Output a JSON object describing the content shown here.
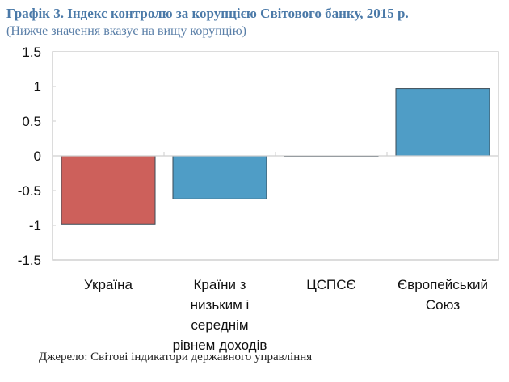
{
  "chart_data": {
    "type": "bar",
    "title": "Графік 3. Індекс контролю за корупцією Світового банку, 2015 р.",
    "subtitle": "(Нижче значення вказує на вищу корупцію)",
    "categories": [
      [
        "Україна"
      ],
      [
        "Країни з",
        "низьким і",
        "середнім",
        "рівнем доходів"
      ],
      [
        "ЦСПСЄ"
      ],
      [
        "Європейський",
        "Союз"
      ]
    ],
    "values": [
      -0.98,
      -0.62,
      0.0,
      0.97
    ],
    "bar_colors": [
      "#cd605b",
      "#4f9dc6",
      "#4f9dc6",
      "#4f9dc6"
    ],
    "ylim": [
      -1.5,
      1.5
    ],
    "yticks": [
      "1.5",
      "1",
      "0.5",
      "0",
      "-0.5",
      "-1",
      "-1.5"
    ],
    "ytick_values": [
      1.5,
      1,
      0.5,
      0,
      -0.5,
      -1,
      -1.5
    ],
    "xlabel": "",
    "ylabel": "",
    "grid": false,
    "source": "Джерело: Світові індикатори державного управління"
  }
}
